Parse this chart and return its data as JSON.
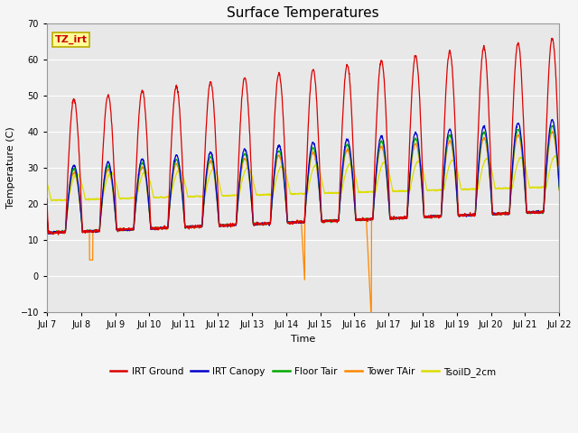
{
  "title": "Surface Temperatures",
  "xlabel": "Time",
  "ylabel": "Temperature (C)",
  "ylim": [
    -10,
    70
  ],
  "x_tick_labels": [
    "Jul 7",
    "Jul 8",
    "Jul 9",
    "Jul 10",
    "Jul 11",
    "Jul 12",
    "Jul 13",
    "Jul 14",
    "Jul 15",
    "Jul 16",
    "Jul 17",
    "Jul 18",
    "Jul 19",
    "Jul 20",
    "Jul 21",
    "Jul 22"
  ],
  "annotation_text": "TZ_irt",
  "annotation_bg": "#ffff99",
  "annotation_border": "#bbaa00",
  "series": [
    {
      "label": "IRT Ground",
      "color": "#dd0000"
    },
    {
      "label": "IRT Canopy",
      "color": "#0000cc"
    },
    {
      "label": "Floor Tair",
      "color": "#00aa00"
    },
    {
      "label": "Tower TAir",
      "color": "#ff8800"
    },
    {
      "label": "TsoilD_2cm",
      "color": "#dddd00"
    }
  ],
  "bg_color": "#e8e8e8",
  "grid_color": "#ffffff",
  "title_fontsize": 11,
  "tick_fontsize": 7,
  "label_fontsize": 8
}
